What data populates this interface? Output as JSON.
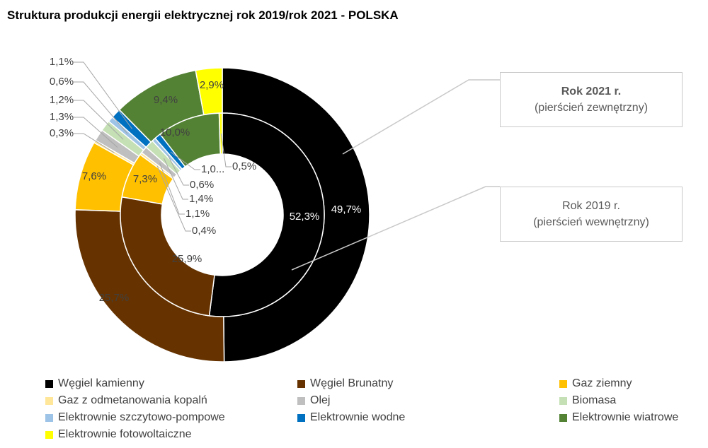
{
  "title": "Struktura produkcji  energii elektrycznej rok 2019/rok 2021 - POLSKA",
  "callouts": {
    "outer": {
      "line1": "Rok 2021 r.",
      "line2": "(pierścień zewnętrzny)"
    },
    "inner": {
      "line1": "Rok 2019 r.",
      "line2": "(pierścień wewnętrzny)"
    }
  },
  "chart_data": {
    "type": "pie",
    "subtype": "doughnut",
    "categories": [
      "Węgiel kamienny",
      "Węgiel Brunatny",
      "Gaz ziemny",
      "Gaz z odmetanowania kopalń",
      "Olej",
      "Biomasa",
      "Elektrownie szczytowo-pompowe",
      "Elektrownie wodne",
      "Elektrownie wiatrowe",
      "Elektrownie fotowoltaiczne"
    ],
    "colors": [
      "#000000",
      "#663300",
      "#ffc000",
      "#ffe699",
      "#bfbfbf",
      "#c5e0b4",
      "#9dc3e6",
      "#0070c0",
      "#548235",
      "#ffff00"
    ],
    "series": [
      {
        "ring": "outer",
        "year": "Rok 2021 r.",
        "values": [
          49.7,
          25.7,
          7.6,
          0.3,
          1.3,
          1.2,
          0.6,
          1.1,
          9.4,
          2.9
        ],
        "labels": [
          "49,7%",
          "25,7%",
          "7,6%",
          "0,3%",
          "1,3%",
          "1,2%",
          "0,6%",
          "1,1%",
          "9,4%",
          "2,9%"
        ]
      },
      {
        "ring": "inner",
        "year": "Rok 2019 r.",
        "values": [
          52.3,
          25.9,
          7.3,
          0.4,
          1.1,
          1.4,
          0.6,
          1.0,
          10.0,
          0.5
        ],
        "labels": [
          "52,3%",
          "25,9%",
          "7,3%",
          "0,4%",
          "1,1%",
          "1,4%",
          "0,6%",
          "1,0...",
          "10,0%",
          "0,5%"
        ]
      }
    ],
    "legend_position": "bottom"
  }
}
